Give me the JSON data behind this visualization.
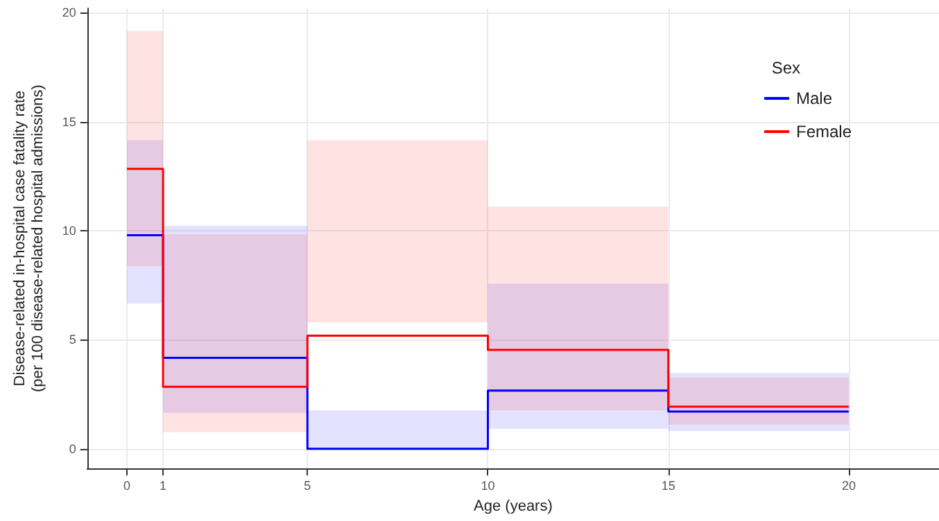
{
  "chart_data": {
    "type": "step",
    "xlabel": "Age (years)",
    "ylabel": "Disease-related in-hospital case fatality rate\n(per 100 disease-related hospital admissions)",
    "legend_title": "Sex",
    "xlim": [
      -1.1,
      22.5
    ],
    "xticks": [
      0,
      1,
      5,
      10,
      15,
      20
    ],
    "ylim": [
      -0.9,
      20.2
    ],
    "yticks": [
      0,
      5,
      10,
      15,
      20
    ],
    "grid": true,
    "legend": "top right",
    "marker": "none",
    "line_style": "solid",
    "series": [
      {
        "name": "Male",
        "color": "#0000ff",
        "x": [
          0,
          1,
          5,
          10,
          15,
          20
        ],
        "values": [
          9.8,
          4.17,
          0,
          2.67,
          1.71,
          1.71
        ],
        "lower": [
          6.67,
          1.65,
          0,
          0.92,
          0.82,
          0.82
        ],
        "upper": [
          14.16,
          10.23,
          1.77,
          7.57,
          3.48,
          3.48
        ]
      },
      {
        "name": "Female",
        "color": "#ff0000",
        "x": [
          0,
          1,
          5,
          10,
          15,
          20
        ],
        "values": [
          12.84,
          2.85,
          5.19,
          4.54,
          1.93,
          1.93
        ],
        "lower": [
          8.38,
          0.77,
          5.8,
          1.77,
          1.12,
          1.12
        ],
        "upper": [
          19.17,
          9.83,
          14.15,
          11.11,
          3.27,
          3.27
        ]
      }
    ]
  }
}
